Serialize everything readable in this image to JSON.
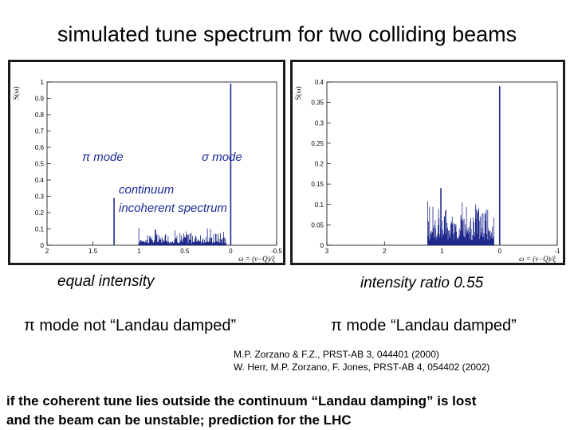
{
  "slide": {
    "title": "simulated tune spectrum for two colliding beams",
    "left_caption": "equal intensity",
    "right_caption": "intensity ratio 0.55",
    "left_mode_note": "π mode not “Landau damped”",
    "right_mode_note": "π mode “Landau damped”",
    "references": [
      "M.P. Zorzano & F.Z., PRST-AB 3, 044401 (2000)",
      "W. Herr, M.P. Zorzano, F. Jones, PRST-AB 4, 054402 (2002)"
    ],
    "conclusion_line1": "if the coherent tune lies outside the continuum “Landau damping” is lost",
    "conclusion_line2": "and the beam can be unstable; prediction for the LHC"
  },
  "chart_data": [
    {
      "type": "line",
      "ylabel": "S(ω)",
      "xlabel": "ω = (ν−Q)/ξ",
      "xlim": [
        2,
        -0.5
      ],
      "ylim": [
        0,
        1
      ],
      "x_ticks": [
        "2",
        "1.5",
        "1",
        "0.5",
        "0",
        "-0.5"
      ],
      "y_ticks": [
        "0",
        "0.1",
        "0.2",
        "0.3",
        "0.4",
        "0.5",
        "0.6",
        "0.7",
        "0.8",
        "0.9",
        "1"
      ],
      "annotations": [
        "π mode",
        "σ mode",
        "continuum",
        "incoherent spectrum"
      ],
      "peaks": [
        {
          "x": 1.27,
          "y": 0.29
        },
        {
          "x": 0.0,
          "y": 0.99
        }
      ],
      "continuum_range": [
        1.0,
        0.05
      ],
      "continuum_level": 0.06
    },
    {
      "type": "line",
      "ylabel": "S(ω)",
      "xlabel": "ω = (ν−Q)/ξ",
      "xlim": [
        3,
        -1
      ],
      "ylim": [
        0,
        0.4
      ],
      "x_ticks": [
        "3",
        "2",
        "1",
        "0",
        "-1"
      ],
      "y_ticks": [
        "0",
        "0.05",
        "0.1",
        "0.15",
        "0.2",
        "0.25",
        "0.3",
        "0.35",
        "0.4"
      ],
      "peaks": [
        {
          "x": 0.0,
          "y": 0.39
        },
        {
          "x": 1.02,
          "y": 0.14
        }
      ],
      "continuum_range": [
        1.25,
        0.1
      ],
      "continuum_level": 0.06
    }
  ]
}
